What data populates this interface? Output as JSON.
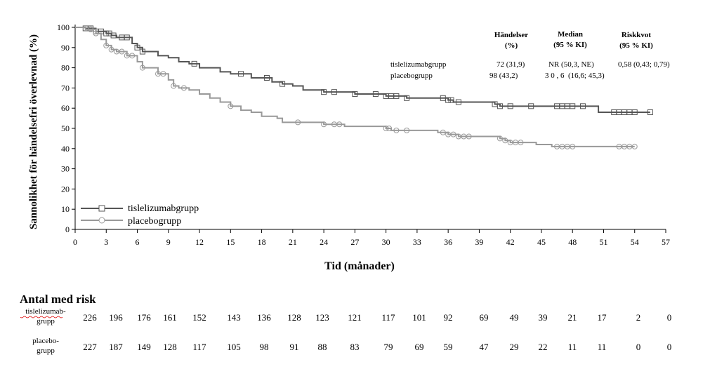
{
  "chart_data": {
    "type": "line",
    "subtype": "kaplan-meier",
    "xlabel": "Tid (månader)",
    "ylabel": "Sannolikhet för händelsefri överlevnad (%)",
    "xlim": [
      0,
      57
    ],
    "ylim": [
      0,
      100
    ],
    "xticks": [
      0,
      3,
      6,
      9,
      12,
      15,
      18,
      21,
      24,
      27,
      30,
      33,
      36,
      39,
      42,
      45,
      48,
      51,
      54,
      57
    ],
    "yticks": [
      0,
      10,
      20,
      30,
      40,
      50,
      60,
      70,
      80,
      90,
      100
    ],
    "grid": false,
    "legend_position": "bottom-left",
    "series": [
      {
        "name": "tislelizumabgrupp",
        "color": "#555555",
        "marker": "square",
        "steps": [
          [
            0,
            100
          ],
          [
            1,
            99.5
          ],
          [
            2,
            98
          ],
          [
            3,
            97
          ],
          [
            3.5,
            96
          ],
          [
            4,
            95
          ],
          [
            5.5,
            92
          ],
          [
            6,
            90
          ],
          [
            6.5,
            88
          ],
          [
            8,
            86
          ],
          [
            9,
            85
          ],
          [
            10,
            83
          ],
          [
            11,
            82
          ],
          [
            12,
            80
          ],
          [
            14,
            78
          ],
          [
            15,
            77
          ],
          [
            17,
            75
          ],
          [
            19,
            73
          ],
          [
            20,
            72
          ],
          [
            21,
            71
          ],
          [
            22,
            69
          ],
          [
            24,
            68
          ],
          [
            27,
            67
          ],
          [
            30,
            66
          ],
          [
            32,
            65
          ],
          [
            36,
            64
          ],
          [
            36.5,
            63
          ],
          [
            40.5,
            62
          ],
          [
            41,
            61
          ],
          [
            50.5,
            58
          ],
          [
            55.5,
            58
          ]
        ],
        "censored": [
          1,
          1.5,
          2,
          2.5,
          3,
          3.3,
          3.7,
          4.5,
          5,
          6,
          6.5,
          11.5,
          16,
          18.5,
          20,
          24,
          25,
          27,
          29,
          30,
          30.5,
          31,
          32,
          35.5,
          36,
          36.3,
          37,
          40.5,
          41,
          42,
          44,
          46.5,
          47,
          47.5,
          48,
          49,
          52,
          52.5,
          53,
          53.5,
          54,
          55.5
        ]
      },
      {
        "name": "placebogrupp",
        "color": "#999999",
        "marker": "circle",
        "steps": [
          [
            0,
            100
          ],
          [
            1,
            99
          ],
          [
            2,
            97
          ],
          [
            2.5,
            94
          ],
          [
            3,
            91
          ],
          [
            3.5,
            89
          ],
          [
            4,
            88
          ],
          [
            5,
            86
          ],
          [
            6,
            83
          ],
          [
            6.5,
            80
          ],
          [
            8,
            77
          ],
          [
            9,
            74
          ],
          [
            9.5,
            71
          ],
          [
            10,
            70
          ],
          [
            11,
            69
          ],
          [
            12,
            67
          ],
          [
            13,
            65
          ],
          [
            14,
            63
          ],
          [
            15,
            61
          ],
          [
            16,
            59
          ],
          [
            17,
            58
          ],
          [
            18,
            56
          ],
          [
            19.5,
            55
          ],
          [
            20,
            53
          ],
          [
            24,
            52
          ],
          [
            26,
            51
          ],
          [
            30,
            50
          ],
          [
            30.5,
            49
          ],
          [
            35,
            48
          ],
          [
            36,
            47
          ],
          [
            37,
            46
          ],
          [
            41,
            45
          ],
          [
            41.5,
            44
          ],
          [
            42,
            43
          ],
          [
            44.5,
            42
          ],
          [
            46,
            41
          ],
          [
            54,
            41
          ]
        ],
        "censored": [
          1.5,
          2,
          3,
          3.5,
          4,
          4.5,
          5,
          5.5,
          6.5,
          8,
          8.5,
          9.5,
          10.5,
          15,
          21.5,
          24,
          25,
          25.5,
          30,
          30.3,
          31,
          32,
          35.5,
          36,
          36.5,
          37,
          37.5,
          38,
          41,
          41.5,
          42,
          42.5,
          43,
          46.5,
          47,
          47.5,
          48,
          52.5,
          53,
          53.5,
          54
        ]
      }
    ],
    "summary_table": {
      "headers": [
        [
          "Händelser",
          "(%)"
        ],
        [
          "Median",
          "(95 % KI)"
        ],
        [
          "Riskkvot",
          "(95 % KI)"
        ]
      ],
      "rows": [
        {
          "group": "tislelizumabgrupp",
          "events": "72 (31,9)",
          "median": "NR (50,3, NE)",
          "hr": "0,58 (0,43; 0,79)"
        },
        {
          "group": "placebogrupp",
          "events": "98 (43,2)",
          "median": "3 0 , 6  (16,6; 45,3)",
          "hr": ""
        }
      ]
    },
    "risk_table": {
      "title": "Antal med risk",
      "rows": [
        {
          "label": [
            "tislelizumab-",
            "grupp"
          ],
          "values": [
            226,
            196,
            176,
            161,
            152,
            143,
            136,
            128,
            123,
            121,
            117,
            101,
            92,
            69,
            49,
            39,
            21,
            17,
            2,
            0
          ]
        },
        {
          "label": [
            "placebo-",
            "grupp"
          ],
          "values": [
            227,
            187,
            149,
            128,
            117,
            105,
            98,
            91,
            88,
            83,
            79,
            69,
            59,
            47,
            29,
            22,
            11,
            11,
            0,
            0
          ]
        }
      ]
    }
  }
}
